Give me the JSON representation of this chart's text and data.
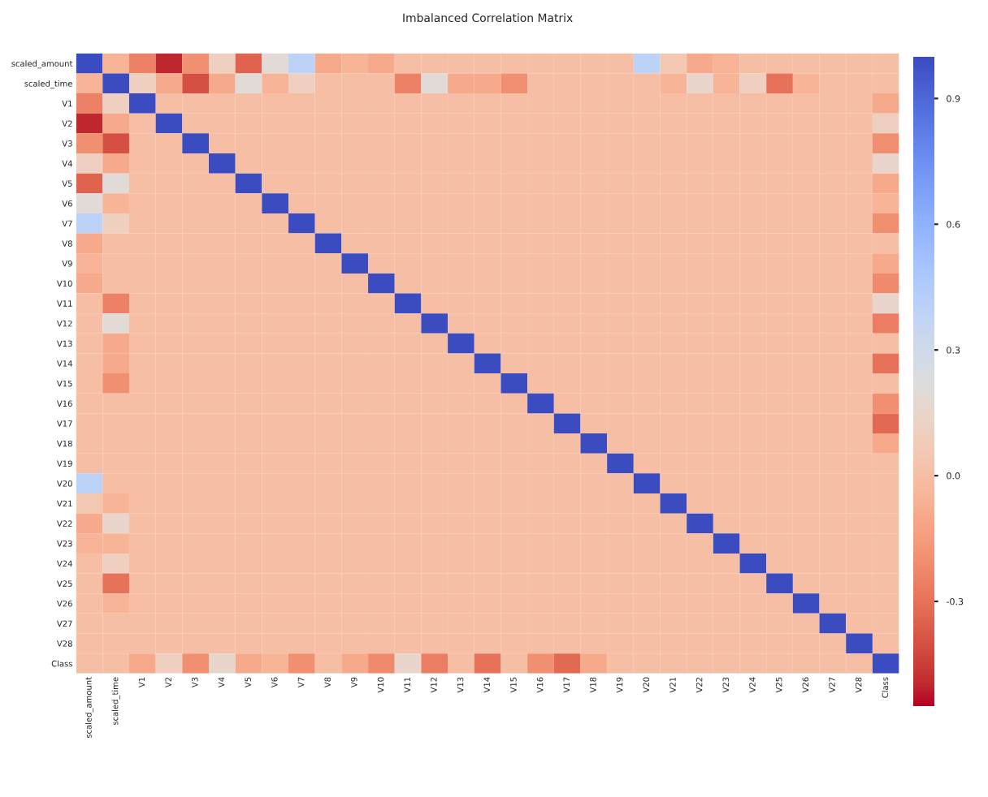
{
  "chart_data": {
    "type": "heatmap",
    "title": "Imbalanced Correlation Matrix",
    "categories": [
      "scaled_amount",
      "scaled_time",
      "V1",
      "V2",
      "V3",
      "V4",
      "V5",
      "V6",
      "V7",
      "V8",
      "V9",
      "V10",
      "V11",
      "V12",
      "V13",
      "V14",
      "V15",
      "V16",
      "V17",
      "V18",
      "V19",
      "V20",
      "V21",
      "V22",
      "V23",
      "V24",
      "V25",
      "V26",
      "V27",
      "V28",
      "Class"
    ],
    "y_categories": [
      "scaled_amount",
      "scaled_time",
      "V1",
      "V2",
      "V3",
      "V4",
      "V5",
      "V6",
      "V7",
      "V8",
      "V9",
      "V10",
      "V11",
      "V12",
      "V13",
      "V14",
      "V15",
      "V16",
      "V17",
      "V18",
      "V19",
      "V20",
      "V21",
      "V22",
      "V23",
      "V24",
      "V25",
      "V26",
      "V27",
      "V28",
      "Class"
    ],
    "cells": [
      [
        1,
        -0.05,
        -0.25,
        -0.5,
        -0.2,
        0.1,
        -0.35,
        0.2,
        0.4,
        -0.1,
        -0.05,
        -0.1,
        0,
        0,
        0,
        0,
        0,
        0,
        0,
        0,
        0,
        0.4,
        0.05,
        -0.1,
        -0.05,
        0,
        0,
        0,
        0,
        0,
        0
      ],
      [
        -0.05,
        1,
        0.1,
        -0.1,
        -0.4,
        -0.1,
        0.2,
        -0.05,
        0.1,
        0,
        0,
        0,
        -0.25,
        0.2,
        -0.1,
        -0.1,
        -0.2,
        0,
        0,
        0,
        0,
        0,
        -0.05,
        0.15,
        -0.05,
        0.1,
        -0.3,
        -0.05,
        0,
        0,
        0
      ],
      [
        -0.25,
        0.1,
        1,
        0,
        0,
        0,
        0,
        0,
        0,
        0,
        0,
        0,
        0,
        0,
        0,
        0,
        0,
        0,
        0,
        0,
        0,
        0,
        0,
        0,
        0,
        0,
        0,
        0,
        0,
        0,
        -0.1
      ],
      [
        -0.5,
        -0.1,
        0,
        1,
        0,
        0,
        0,
        0,
        0,
        0,
        0,
        0,
        0,
        0,
        0,
        0,
        0,
        0,
        0,
        0,
        0,
        0,
        0,
        0,
        0,
        0,
        0,
        0,
        0,
        0,
        0.1
      ],
      [
        -0.2,
        -0.4,
        0,
        0,
        1,
        0,
        0,
        0,
        0,
        0,
        0,
        0,
        0,
        0,
        0,
        0,
        0,
        0,
        0,
        0,
        0,
        0,
        0,
        0,
        0,
        0,
        0,
        0,
        0,
        0,
        -0.2
      ],
      [
        0.1,
        -0.1,
        0,
        0,
        0,
        1,
        0,
        0,
        0,
        0,
        0,
        0,
        0,
        0,
        0,
        0,
        0,
        0,
        0,
        0,
        0,
        0,
        0,
        0,
        0,
        0,
        0,
        0,
        0,
        0,
        0.15
      ],
      [
        -0.35,
        0.2,
        0,
        0,
        0,
        0,
        1,
        0,
        0,
        0,
        0,
        0,
        0,
        0,
        0,
        0,
        0,
        0,
        0,
        0,
        0,
        0,
        0,
        0,
        0,
        0,
        0,
        0,
        0,
        0,
        -0.1
      ],
      [
        0.2,
        -0.05,
        0,
        0,
        0,
        0,
        0,
        1,
        0,
        0,
        0,
        0,
        0,
        0,
        0,
        0,
        0,
        0,
        0,
        0,
        0,
        0,
        0,
        0,
        0,
        0,
        0,
        0,
        0,
        0,
        -0.05
      ],
      [
        0.4,
        0.1,
        0,
        0,
        0,
        0,
        0,
        0,
        1,
        0,
        0,
        0,
        0,
        0,
        0,
        0,
        0,
        0,
        0,
        0,
        0,
        0,
        0,
        0,
        0,
        0,
        0,
        0,
        0,
        0,
        -0.2
      ],
      [
        -0.1,
        0,
        0,
        0,
        0,
        0,
        0,
        0,
        0,
        1,
        0,
        0,
        0,
        0,
        0,
        0,
        0,
        0,
        0,
        0,
        0,
        0,
        0,
        0,
        0,
        0,
        0,
        0,
        0,
        0,
        0
      ],
      [
        -0.05,
        0,
        0,
        0,
        0,
        0,
        0,
        0,
        0,
        0,
        1,
        0,
        0,
        0,
        0,
        0,
        0,
        0,
        0,
        0,
        0,
        0,
        0,
        0,
        0,
        0,
        0,
        0,
        0,
        0,
        -0.1
      ],
      [
        -0.1,
        0,
        0,
        0,
        0,
        0,
        0,
        0,
        0,
        0,
        0,
        1,
        0,
        0,
        0,
        0,
        0,
        0,
        0,
        0,
        0,
        0,
        0,
        0,
        0,
        0,
        0,
        0,
        0,
        0,
        -0.22
      ],
      [
        0,
        -0.25,
        0,
        0,
        0,
        0,
        0,
        0,
        0,
        0,
        0,
        0,
        1,
        0,
        0,
        0,
        0,
        0,
        0,
        0,
        0,
        0,
        0,
        0,
        0,
        0,
        0,
        0,
        0,
        0,
        0.15
      ],
      [
        0,
        0.2,
        0,
        0,
        0,
        0,
        0,
        0,
        0,
        0,
        0,
        0,
        0,
        1,
        0,
        0,
        0,
        0,
        0,
        0,
        0,
        0,
        0,
        0,
        0,
        0,
        0,
        0,
        0,
        0,
        -0.26
      ],
      [
        0,
        -0.1,
        0,
        0,
        0,
        0,
        0,
        0,
        0,
        0,
        0,
        0,
        0,
        0,
        1,
        0,
        0,
        0,
        0,
        0,
        0,
        0,
        0,
        0,
        0,
        0,
        0,
        0,
        0,
        0,
        0
      ],
      [
        0,
        -0.1,
        0,
        0,
        0,
        0,
        0,
        0,
        0,
        0,
        0,
        0,
        0,
        0,
        0,
        1,
        0,
        0,
        0,
        0,
        0,
        0,
        0,
        0,
        0,
        0,
        0,
        0,
        0,
        0,
        -0.3
      ],
      [
        0,
        -0.2,
        0,
        0,
        0,
        0,
        0,
        0,
        0,
        0,
        0,
        0,
        0,
        0,
        0,
        0,
        1,
        0,
        0,
        0,
        0,
        0,
        0,
        0,
        0,
        0,
        0,
        0,
        0,
        0,
        0
      ],
      [
        0,
        0,
        0,
        0,
        0,
        0,
        0,
        0,
        0,
        0,
        0,
        0,
        0,
        0,
        0,
        0,
        0,
        1,
        0,
        0,
        0,
        0,
        0,
        0,
        0,
        0,
        0,
        0,
        0,
        0,
        -0.2
      ],
      [
        0,
        0,
        0,
        0,
        0,
        0,
        0,
        0,
        0,
        0,
        0,
        0,
        0,
        0,
        0,
        0,
        0,
        0,
        1,
        0,
        0,
        0,
        0,
        0,
        0,
        0,
        0,
        0,
        0,
        0,
        -0.33
      ],
      [
        0,
        0,
        0,
        0,
        0,
        0,
        0,
        0,
        0,
        0,
        0,
        0,
        0,
        0,
        0,
        0,
        0,
        0,
        0,
        1,
        0,
        0,
        0,
        0,
        0,
        0,
        0,
        0,
        0,
        0,
        -0.1
      ],
      [
        0,
        0,
        0,
        0,
        0,
        0,
        0,
        0,
        0,
        0,
        0,
        0,
        0,
        0,
        0,
        0,
        0,
        0,
        0,
        0,
        1,
        0,
        0,
        0,
        0,
        0,
        0,
        0,
        0,
        0,
        0
      ],
      [
        0.4,
        0,
        0,
        0,
        0,
        0,
        0,
        0,
        0,
        0,
        0,
        0,
        0,
        0,
        0,
        0,
        0,
        0,
        0,
        0,
        0,
        1,
        0,
        0,
        0,
        0,
        0,
        0,
        0,
        0,
        0
      ],
      [
        0.05,
        -0.05,
        0,
        0,
        0,
        0,
        0,
        0,
        0,
        0,
        0,
        0,
        0,
        0,
        0,
        0,
        0,
        0,
        0,
        0,
        0,
        0,
        1,
        0,
        0,
        0,
        0,
        0,
        0,
        0,
        0
      ],
      [
        -0.1,
        0.15,
        0,
        0,
        0,
        0,
        0,
        0,
        0,
        0,
        0,
        0,
        0,
        0,
        0,
        0,
        0,
        0,
        0,
        0,
        0,
        0,
        0,
        1,
        0,
        0,
        0,
        0,
        0,
        0,
        0
      ],
      [
        -0.05,
        -0.05,
        0,
        0,
        0,
        0,
        0,
        0,
        0,
        0,
        0,
        0,
        0,
        0,
        0,
        0,
        0,
        0,
        0,
        0,
        0,
        0,
        0,
        0,
        1,
        0,
        0,
        0,
        0,
        0,
        0
      ],
      [
        0,
        0.1,
        0,
        0,
        0,
        0,
        0,
        0,
        0,
        0,
        0,
        0,
        0,
        0,
        0,
        0,
        0,
        0,
        0,
        0,
        0,
        0,
        0,
        0,
        0,
        1,
        0,
        0,
        0,
        0,
        0
      ],
      [
        0,
        -0.3,
        0,
        0,
        0,
        0,
        0,
        0,
        0,
        0,
        0,
        0,
        0,
        0,
        0,
        0,
        0,
        0,
        0,
        0,
        0,
        0,
        0,
        0,
        0,
        0,
        1,
        0,
        0,
        0,
        0
      ],
      [
        0,
        -0.05,
        0,
        0,
        0,
        0,
        0,
        0,
        0,
        0,
        0,
        0,
        0,
        0,
        0,
        0,
        0,
        0,
        0,
        0,
        0,
        0,
        0,
        0,
        0,
        0,
        0,
        1,
        0,
        0,
        0
      ],
      [
        0,
        0,
        0,
        0,
        0,
        0,
        0,
        0,
        0,
        0,
        0,
        0,
        0,
        0,
        0,
        0,
        0,
        0,
        0,
        0,
        0,
        0,
        0,
        0,
        0,
        0,
        0,
        0,
        1,
        0,
        0
      ],
      [
        0,
        0,
        0,
        0,
        0,
        0,
        0,
        0,
        0,
        0,
        0,
        0,
        0,
        0,
        0,
        0,
        0,
        0,
        0,
        0,
        0,
        0,
        0,
        0,
        0,
        0,
        0,
        0,
        0,
        1,
        0
      ],
      [
        0,
        0,
        -0.1,
        0.1,
        -0.2,
        0.15,
        -0.1,
        -0.05,
        -0.2,
        0,
        -0.1,
        -0.22,
        0.15,
        -0.26,
        0,
        -0.3,
        0,
        -0.2,
        -0.33,
        -0.1,
        0,
        0,
        0,
        0,
        0,
        0,
        0,
        0,
        0,
        0,
        1
      ]
    ],
    "clim": [
      -0.55,
      1.0
    ],
    "cticks": [
      0.9,
      0.6,
      0.3,
      {
        "value": 0,
        "label": "0.0"
      },
      -0.3
    ]
  }
}
